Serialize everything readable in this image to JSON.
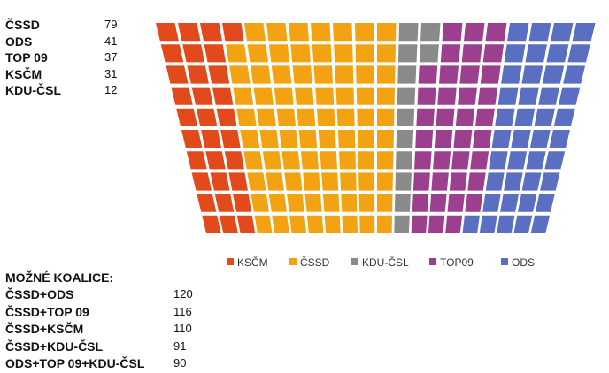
{
  "results": {
    "rows": [
      {
        "party": "ČSSD",
        "seats": "79"
      },
      {
        "party": "ODS",
        "seats": "41"
      },
      {
        "party": "TOP 09",
        "seats": "37"
      },
      {
        "party": "KSČM",
        "seats": "31"
      },
      {
        "party": "KDU-ČSL",
        "seats": "12"
      }
    ]
  },
  "coalitions": {
    "title": "MOŽNÉ KOALICE:",
    "rows": [
      {
        "name": "ČSSD+ODS",
        "seats": "120"
      },
      {
        "name": "ČSSD+TOP 09",
        "seats": "116"
      },
      {
        "name": "ČSSD+KSČM",
        "seats": "110"
      },
      {
        "name": "ČSSD+KDU-ČSL",
        "seats": "91"
      },
      {
        "name": "ODS+TOP 09+KDU-ČSL",
        "seats": "90"
      }
    ]
  },
  "chart_data": {
    "type": "seat-allocation",
    "rows": 10,
    "order": [
      "KSČM",
      "ČSSD",
      "KDU-ČSL",
      "TOP09",
      "ODS"
    ],
    "series": [
      {
        "name": "KSČM",
        "value": 31,
        "color": "#e24a1c"
      },
      {
        "name": "ČSSD",
        "value": 79,
        "color": "#f3a312"
      },
      {
        "name": "KDU-ČSL",
        "value": 12,
        "color": "#8a8a8a"
      },
      {
        "name": "TOP09",
        "value": 37,
        "color": "#9c3f8f"
      },
      {
        "name": "ODS",
        "value": 41,
        "color": "#5b6fc2"
      }
    ],
    "legend_position": "bottom"
  }
}
